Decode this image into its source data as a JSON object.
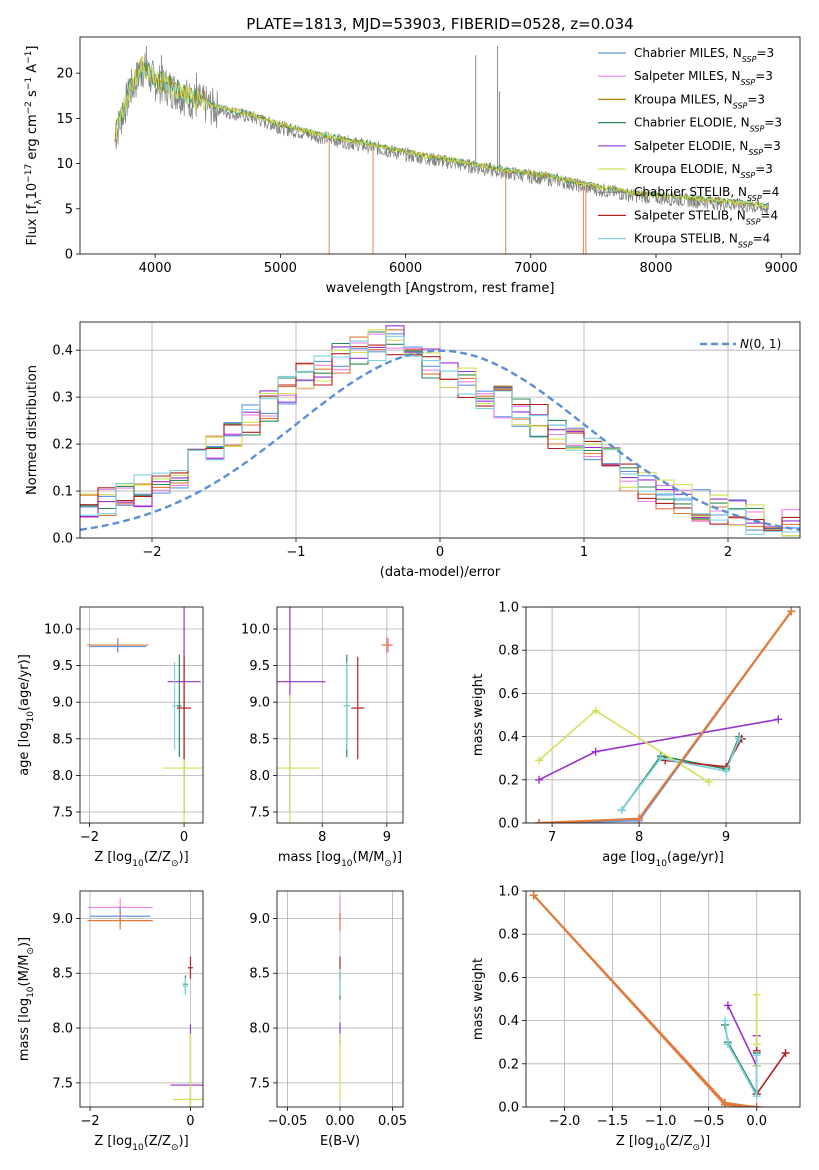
{
  "figure_title": "PLATE=1813, MJD=53903, FIBERID=0528, z=0.034",
  "colors": {
    "series": [
      "#6495ed",
      "#ee82ee",
      "#b8860b",
      "#2e8b57",
      "#9932cc",
      "#d4e157",
      "#808080",
      "#b22222",
      "#7fd3e0"
    ],
    "model_line": "#7fd3e0",
    "model_orange": "#e07b39",
    "spectrum": "#808080",
    "gauss": "#5b8fd6"
  },
  "chart_data": [
    {
      "type": "line",
      "title": "PLATE=1813, MJD=53903, FIBERID=0528, z=0.034",
      "xlabel": "wavelength [Angstrom, rest frame]",
      "ylabel_parts": {
        "pre": "Flux [f",
        "sub": "λ",
        "mid": "10",
        "sup1": "−17",
        "post": " erg cm",
        "sup2": "−2",
        "post2": " s",
        "sup3": "−1",
        "post3": " A",
        "sup4": "−1",
        "end": "]"
      },
      "xlim": [
        3400,
        9150
      ],
      "ylim": [
        0,
        24
      ],
      "xticks": [
        4000,
        5000,
        6000,
        7000,
        8000,
        9000
      ],
      "yticks": [
        0,
        5,
        10,
        15,
        20
      ],
      "grid": false,
      "legend_placement": "top-right",
      "series": [
        {
          "name": "Chabrier MILES",
          "nssp": "3"
        },
        {
          "name": "Salpeter MILES",
          "nssp": "3"
        },
        {
          "name": "Kroupa MILES",
          "nssp": "3"
        },
        {
          "name": "Chabrier ELODIE",
          "nssp": "3"
        },
        {
          "name": "Salpeter ELODIE",
          "nssp": "3"
        },
        {
          "name": "Kroupa ELODIE",
          "nssp": "3"
        },
        {
          "name": "Chabrier STELIB",
          "nssp": "4"
        },
        {
          "name": "Salpeter STELIB",
          "nssp": "4"
        },
        {
          "name": "Kroupa STELIB",
          "nssp": "4"
        }
      ],
      "nssp_label": "N",
      "nssp_sub": "SSP",
      "continuum": [
        [
          3680,
          13
        ],
        [
          3800,
          18
        ],
        [
          3900,
          20.5
        ],
        [
          4000,
          19
        ],
        [
          4100,
          18.5
        ],
        [
          4300,
          17
        ],
        [
          4500,
          16
        ],
        [
          4800,
          15
        ],
        [
          5000,
          14
        ],
        [
          5300,
          13
        ],
        [
          5600,
          12.2
        ],
        [
          6000,
          11
        ],
        [
          6400,
          10
        ],
        [
          6800,
          9
        ],
        [
          7200,
          8.2
        ],
        [
          7400,
          7.5
        ],
        [
          7800,
          6.5
        ],
        [
          8200,
          6.0
        ],
        [
          8600,
          5.5
        ],
        [
          8900,
          5.0
        ]
      ],
      "spikes": [
        [
          3930,
          23
        ],
        [
          4050,
          22
        ],
        [
          4330,
          20
        ],
        [
          5390,
          0
        ],
        [
          5740,
          0
        ],
        [
          6560,
          22
        ],
        [
          6735,
          23
        ],
        [
          6750,
          18
        ],
        [
          6800,
          0
        ],
        [
          7420,
          0
        ],
        [
          7440,
          0
        ]
      ]
    },
    {
      "type": "line",
      "xlabel": "(data-model)/error",
      "ylabel": "Normed distribution",
      "xlim": [
        -2.5,
        2.5
      ],
      "ylim": [
        0,
        0.46
      ],
      "xticks": [
        -2,
        -1,
        0,
        1,
        2
      ],
      "xtick_labels": [
        "−2",
        "−1",
        "0",
        "1",
        "2"
      ],
      "yticks": [
        0,
        0.1,
        0.2,
        0.3,
        0.4
      ],
      "ytick_labels": [
        "0.0",
        "0.1",
        "0.2",
        "0.3",
        "0.4"
      ],
      "grid": true,
      "legend_placement": "top-right",
      "gauss_label_parts": {
        "main": "N",
        "rest": "(0, 1)"
      },
      "hist_profile": [
        0.05,
        0.06,
        0.07,
        0.08,
        0.1,
        0.12,
        0.15,
        0.17,
        0.2,
        0.23,
        0.26,
        0.29,
        0.32,
        0.34,
        0.36,
        0.38,
        0.39,
        0.4,
        0.39,
        0.37,
        0.35,
        0.33,
        0.31,
        0.29,
        0.27,
        0.25,
        0.22,
        0.2,
        0.18,
        0.16,
        0.13,
        0.11,
        0.09,
        0.08,
        0.07,
        0.06,
        0.05,
        0.04,
        0.035,
        0.03
      ]
    },
    {
      "type": "scatter",
      "xlabel_parts": {
        "pre": "Z [log",
        "sub": "10",
        "post": "(Z/Z",
        "sub2": "⊙",
        "end": ")]"
      },
      "ylabel_parts": {
        "pre": "age  [log",
        "sub": "10",
        "post": "(age/yr)]"
      },
      "xlim": [
        -2.2,
        0.4
      ],
      "ylim": [
        7.35,
        10.3
      ],
      "xticks": [
        -2,
        0
      ],
      "xtick_labels": [
        "−2",
        "0"
      ],
      "yticks": [
        7.5,
        8.0,
        8.5,
        9.0,
        9.5,
        10.0
      ],
      "ytick_labels": [
        "7.5",
        "8.0",
        "8.5",
        "9.0",
        "9.5",
        "10.0"
      ],
      "grid": true,
      "points": [
        {
          "x": -1.4,
          "y": 9.78,
          "xerr": 0.65,
          "yerr": 0.1,
          "color": 2
        },
        {
          "x": -1.4,
          "y": 9.76,
          "xerr": 0.6,
          "yerr": 0.08,
          "color": 0
        },
        {
          "x": -0.1,
          "y": 8.95,
          "xerr": 0.05,
          "yerr": 0.7,
          "color": 3
        },
        {
          "x": 0.0,
          "y": 9.28,
          "xerr": 0.35,
          "yerr": 1.8,
          "color": 4
        },
        {
          "x": 0.0,
          "y": 8.1,
          "xerr": 0.45,
          "yerr": 1.0,
          "color": 5
        },
        {
          "x": 0.0,
          "y": 8.92,
          "xerr": 0.15,
          "yerr": 0.7,
          "color": 7
        },
        {
          "x": -0.2,
          "y": 8.95,
          "xerr": 0.05,
          "yerr": 0.6,
          "color": 8
        }
      ]
    },
    {
      "type": "scatter",
      "xlabel_parts": {
        "pre": "mass [log",
        "sub": "10",
        "post": "(M/M",
        "sub2": "⊙",
        "end": ")]"
      },
      "xlim": [
        7.3,
        9.25
      ],
      "ylim": [
        7.35,
        10.3
      ],
      "xticks": [
        8,
        9
      ],
      "xtick_labels": [
        "8",
        "9"
      ],
      "yticks": [
        7.5,
        8.0,
        8.5,
        9.0,
        9.5,
        10.0
      ],
      "ytick_labels": [
        "7.5",
        "8.0",
        "8.5",
        "9.0",
        "9.5",
        "10.0"
      ],
      "grid": true,
      "points": [
        {
          "x": 9.02,
          "y": 9.78,
          "xerr": 0.08,
          "yerr": 0.1,
          "color": 1
        },
        {
          "x": 9.0,
          "y": 9.78,
          "xerr": 0.08,
          "yerr": 0.1,
          "color": 2
        },
        {
          "x": 8.38,
          "y": 8.95,
          "xerr": 0.05,
          "yerr": 0.7,
          "color": 3
        },
        {
          "x": 7.5,
          "y": 9.28,
          "xerr": 0.55,
          "yerr": 1.8,
          "color": 4
        },
        {
          "x": 7.5,
          "y": 8.1,
          "xerr": 0.45,
          "yerr": 1.0,
          "color": 5
        },
        {
          "x": 8.55,
          "y": 8.92,
          "xerr": 0.1,
          "yerr": 0.7,
          "color": 7
        },
        {
          "x": 8.38,
          "y": 8.95,
          "xerr": 0.05,
          "yerr": 0.6,
          "color": 8
        }
      ]
    },
    {
      "type": "line",
      "xlabel_parts": {
        "pre": "age  [log",
        "sub": "10",
        "post": "(age/yr)]"
      },
      "ylabel": "mass weight",
      "xlim": [
        6.7,
        9.85
      ],
      "ylim": [
        0,
        1.0
      ],
      "xticks": [
        7,
        8,
        9
      ],
      "xtick_labels": [
        "7",
        "8",
        "9"
      ],
      "yticks": [
        0,
        0.2,
        0.4,
        0.6,
        0.8,
        1.0
      ],
      "ytick_labels": [
        "0.0",
        "0.2",
        "0.4",
        "0.6",
        "0.8",
        "1.0"
      ],
      "grid": true,
      "series": [
        {
          "color": 0,
          "x": [
            6.85,
            8.0,
            9.75
          ],
          "y": [
            0.0,
            0.01,
            0.98
          ]
        },
        {
          "color": 1,
          "x": [
            6.85,
            8.0,
            9.75
          ],
          "y": [
            0.0,
            0.02,
            0.98
          ]
        },
        {
          "color": 2,
          "x": [
            6.85,
            8.0,
            9.75
          ],
          "y": [
            0.0,
            0.02,
            0.98
          ]
        },
        {
          "color": 3,
          "x": [
            7.8,
            8.25,
            9.0,
            9.15
          ],
          "y": [
            0.06,
            0.31,
            0.25,
            0.4
          ]
        },
        {
          "color": 4,
          "x": [
            6.85,
            7.5,
            9.6
          ],
          "y": [
            0.2,
            0.33,
            0.48
          ]
        },
        {
          "color": 5,
          "x": [
            6.85,
            7.5,
            8.8
          ],
          "y": [
            0.29,
            0.52,
            0.19
          ]
        },
        {
          "color": 7,
          "x": [
            8.3,
            9.0,
            9.18
          ],
          "y": [
            0.29,
            0.26,
            0.39
          ]
        },
        {
          "color": 8,
          "x": [
            7.8,
            8.25,
            9.0,
            9.15
          ],
          "y": [
            0.06,
            0.3,
            0.24,
            0.39
          ]
        },
        {
          "color": 9,
          "x": [
            6.85,
            8.0,
            9.75
          ],
          "y": [
            0.0,
            0.02,
            0.98
          ]
        }
      ]
    },
    {
      "type": "scatter",
      "xlabel_parts": {
        "pre": "Z [log",
        "sub": "10",
        "post": "(Z/Z",
        "sub2": "⊙",
        "end": ")]"
      },
      "ylabel_parts": {
        "pre": "mass [log",
        "sub": "10",
        "post": "(M/M",
        "sub2": "⊙",
        "end": ")]"
      },
      "xlim": [
        -2.2,
        0.25
      ],
      "ylim": [
        7.28,
        9.25
      ],
      "xticks": [
        -2,
        0
      ],
      "xtick_labels": [
        "−2",
        "0"
      ],
      "yticks": [
        7.5,
        8.0,
        8.5,
        9.0
      ],
      "ytick_labels": [
        "7.5",
        "8.0",
        "8.5",
        "9.0"
      ],
      "grid": true,
      "points": [
        {
          "x": -1.4,
          "y": 9.1,
          "xerr": 0.65,
          "yerr": 0.08,
          "color": 1
        },
        {
          "x": -1.4,
          "y": 9.02,
          "xerr": 0.6,
          "yerr": 0.08,
          "color": 0
        },
        {
          "x": -1.4,
          "y": 8.98,
          "xerr": 0.65,
          "yerr": 0.08,
          "color": 2
        },
        {
          "x": -0.1,
          "y": 8.4,
          "xerr": 0.05,
          "yerr": 0.08,
          "color": 3
        },
        {
          "x": 0.0,
          "y": 7.48,
          "xerr": 0.4,
          "yerr": 0.55,
          "color": 4
        },
        {
          "x": 0.0,
          "y": 7.35,
          "xerr": 0.35,
          "yerr": 0.6,
          "color": 5
        },
        {
          "x": 0.0,
          "y": 8.55,
          "xerr": 0.05,
          "yerr": 0.1,
          "color": 7
        },
        {
          "x": -0.1,
          "y": 8.38,
          "xerr": 0.05,
          "yerr": 0.08,
          "color": 8
        }
      ]
    },
    {
      "type": "scatter",
      "xlabel": "E(B-V)",
      "xlim": [
        -0.06,
        0.06
      ],
      "ylim": [
        7.28,
        9.25
      ],
      "xticks": [
        -0.05,
        0.0,
        0.05
      ],
      "xtick_labels": [
        "−0.05",
        "0.00",
        "0.05"
      ],
      "yticks": [
        7.5,
        8.0,
        8.5,
        9.0
      ],
      "ytick_labels": [
        "7.5",
        "8.0",
        "8.5",
        "9.0"
      ],
      "grid": true,
      "points": [
        {
          "x": 0.0,
          "y": 9.08,
          "xerr": 0,
          "yerr": 0.12,
          "color": 1
        },
        {
          "x": 0.0,
          "y": 8.97,
          "xerr": 0,
          "yerr": 0.08,
          "color": 2
        },
        {
          "x": 0.0,
          "y": 8.38,
          "xerr": 0,
          "yerr": 0.12,
          "color": 3
        },
        {
          "x": 0.0,
          "y": 7.95,
          "xerr": 0,
          "yerr": 0.1,
          "color": 4
        },
        {
          "x": 0.0,
          "y": 7.65,
          "xerr": 0,
          "yerr": 0.3,
          "color": 5
        },
        {
          "x": 0.0,
          "y": 8.55,
          "xerr": 0,
          "yerr": 0.1,
          "color": 7
        },
        {
          "x": 0.0,
          "y": 8.42,
          "xerr": 0,
          "yerr": 0.12,
          "color": 8
        }
      ]
    },
    {
      "type": "line",
      "xlabel_parts": {
        "pre": "Z [log",
        "sub": "10",
        "post": "(Z/Z",
        "sub2": "⊙",
        "end": ")]"
      },
      "ylabel": "mass weight",
      "xlim": [
        -2.4,
        0.45
      ],
      "ylim": [
        0,
        1.0
      ],
      "xticks": [
        -2.0,
        -1.5,
        -1.0,
        -0.5,
        0.0
      ],
      "xtick_labels": [
        "−2.0",
        "−1.5",
        "−1.0",
        "−0.5",
        "0.0"
      ],
      "yticks": [
        0,
        0.2,
        0.4,
        0.6,
        0.8,
        1.0
      ],
      "ytick_labels": [
        "0.0",
        "0.2",
        "0.4",
        "0.6",
        "0.8",
        "1.0"
      ],
      "grid": true,
      "series": [
        {
          "color": 0,
          "x": [
            -2.32,
            -0.33,
            0.0
          ],
          "y": [
            0.98,
            0.01,
            0.0
          ]
        },
        {
          "color": 1,
          "x": [
            -2.32,
            -0.33,
            0.0
          ],
          "y": [
            0.98,
            0.02,
            0.0
          ]
        },
        {
          "color": 2,
          "x": [
            -2.32,
            -0.33,
            0.0
          ],
          "y": [
            0.98,
            0.02,
            0.0
          ]
        },
        {
          "color": 3,
          "x": [
            -0.33,
            -0.3,
            0.0,
            0.0
          ],
          "y": [
            0.38,
            0.3,
            0.06,
            0.25
          ]
        },
        {
          "color": 4,
          "x": [
            -0.3,
            0.0,
            0.0
          ],
          "y": [
            0.47,
            0.19,
            0.33
          ]
        },
        {
          "color": 5,
          "x": [
            0.0,
            0.0,
            0.0
          ],
          "y": [
            0.52,
            0.29,
            0.19
          ]
        },
        {
          "color": 7,
          "x": [
            0.0,
            0.0,
            0.3
          ],
          "y": [
            0.26,
            0.06,
            0.25
          ]
        },
        {
          "color": 8,
          "x": [
            -0.33,
            -0.3,
            0.0,
            0.0
          ],
          "y": [
            0.4,
            0.29,
            0.05,
            0.24
          ]
        },
        {
          "color": 9,
          "x": [
            -2.32,
            -0.33,
            0.0
          ],
          "y": [
            0.98,
            0.01,
            0.0
          ]
        }
      ]
    }
  ]
}
